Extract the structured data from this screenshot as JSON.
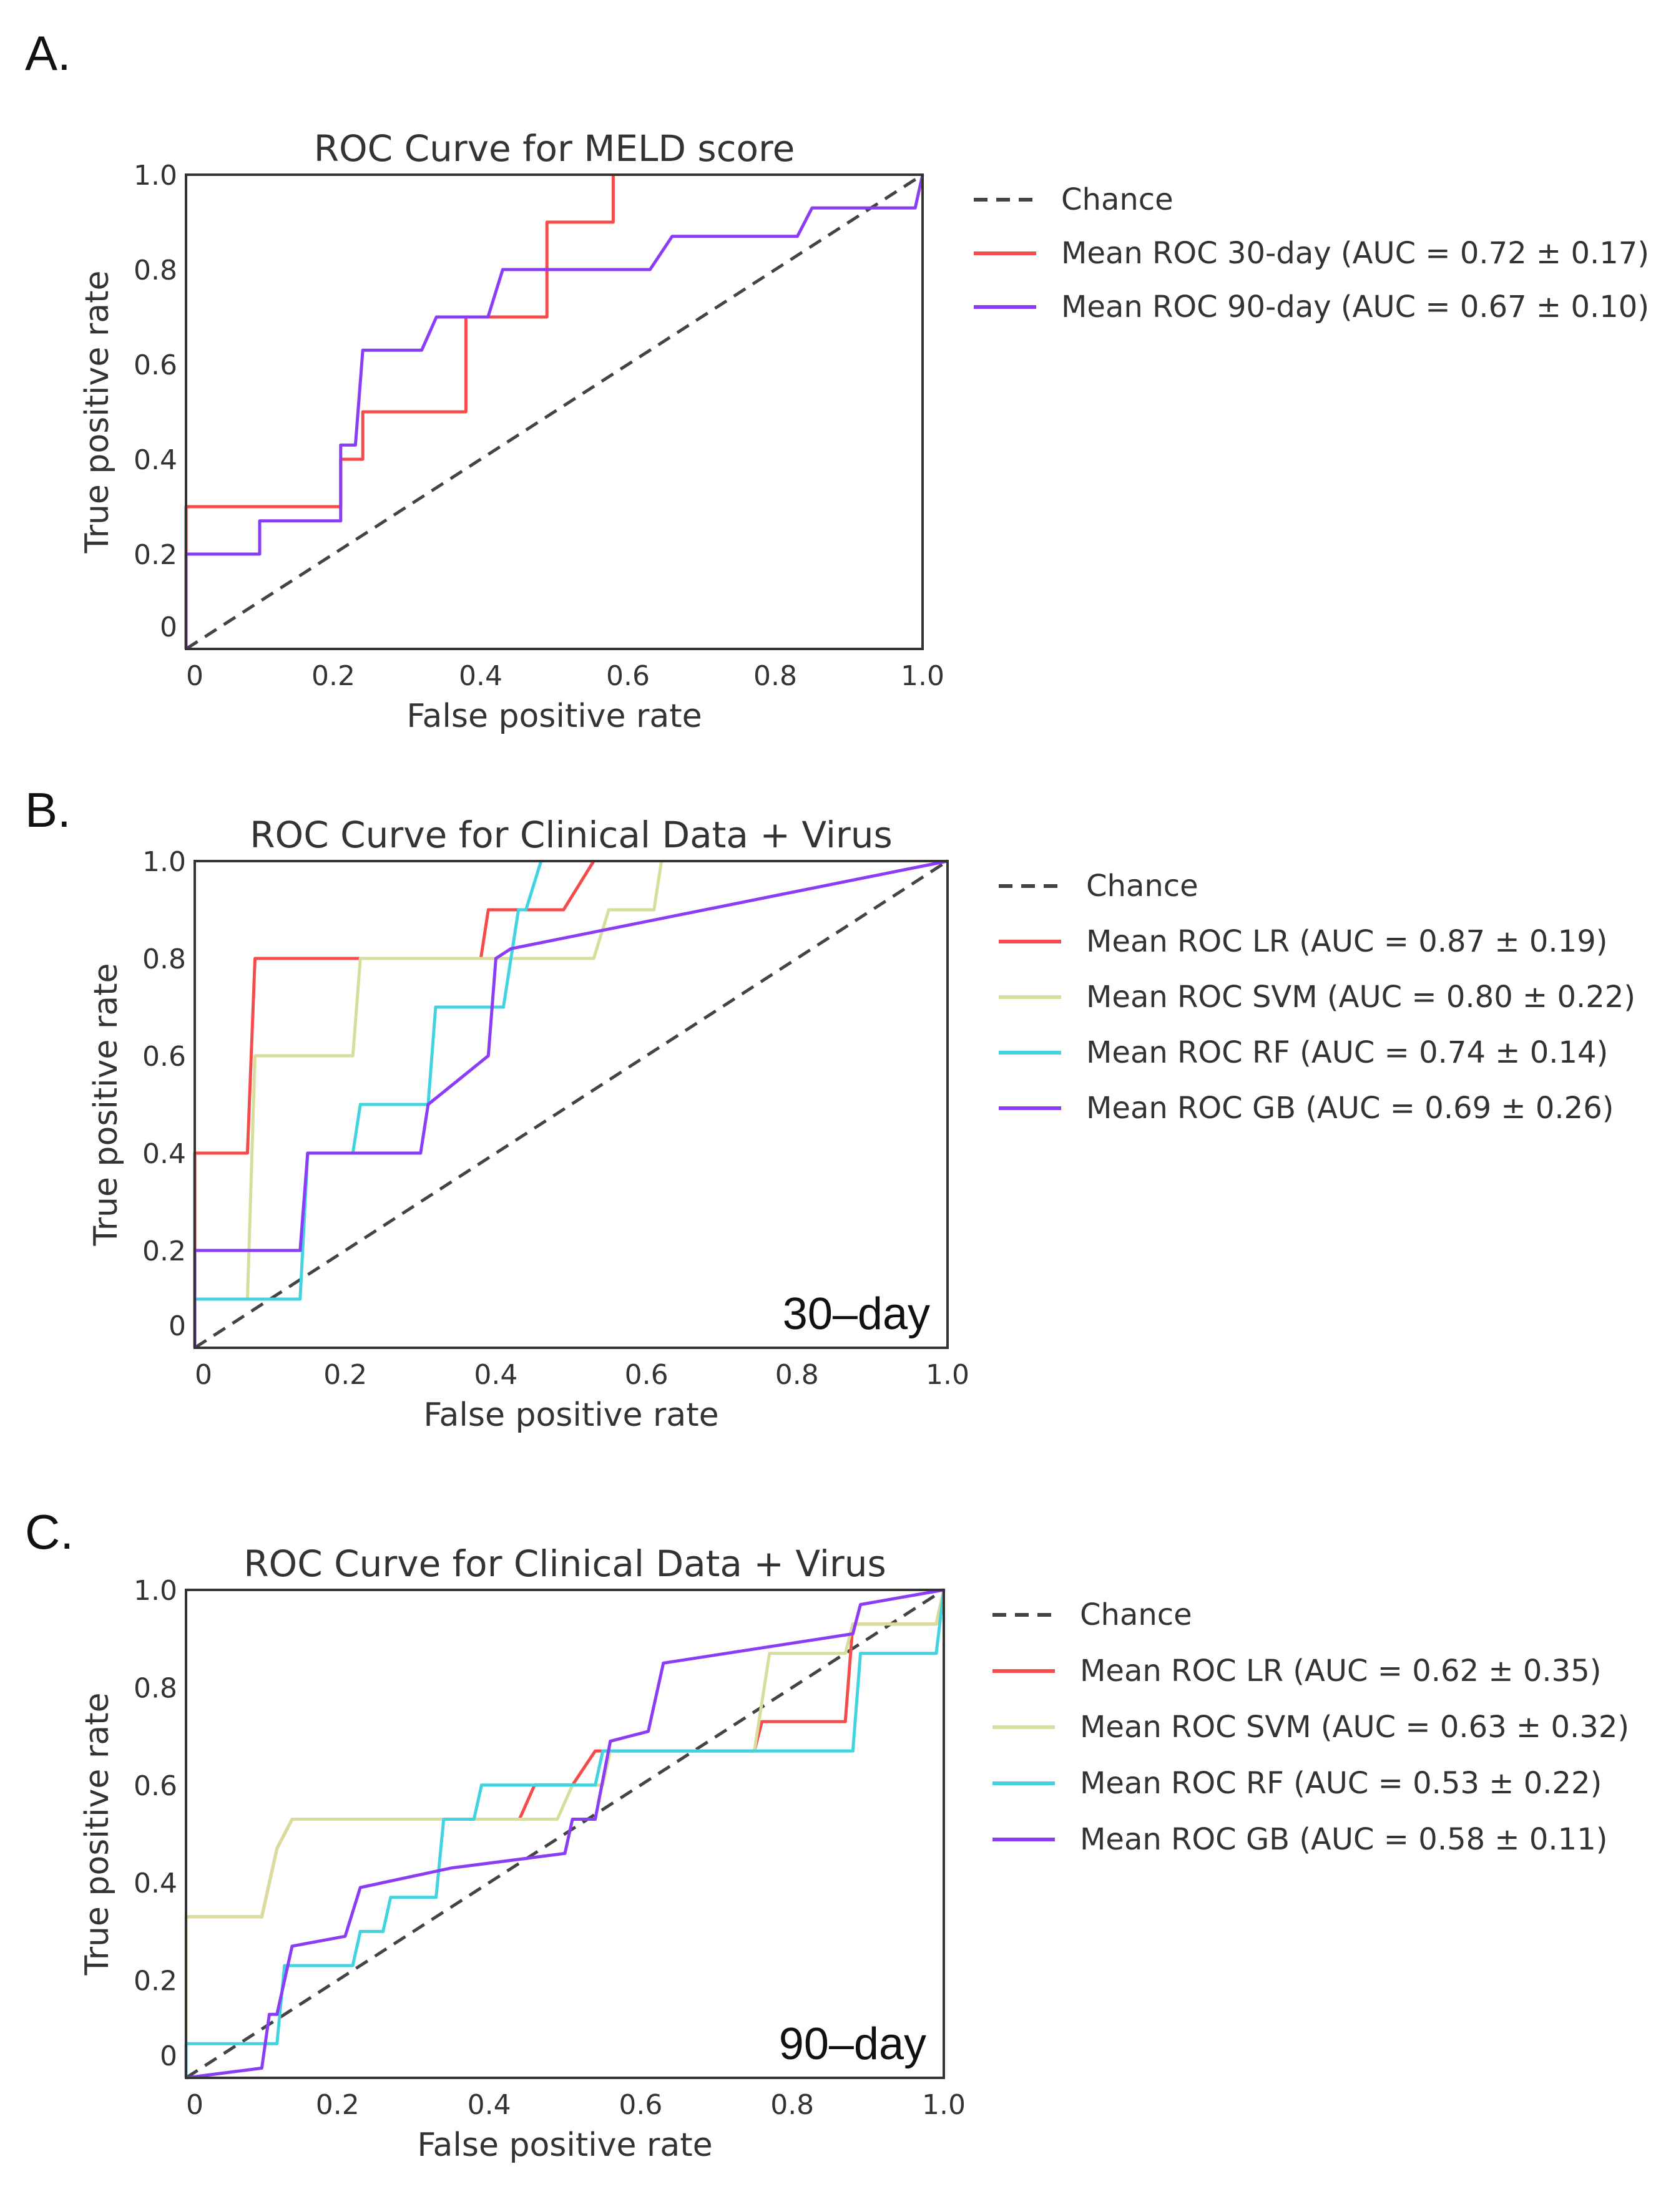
{
  "chart_data": [
    {
      "type": "line",
      "panel": "A.",
      "title": "ROC Curve for MELD score",
      "xlabel": "False positive rate",
      "ylabel": "True positive rate",
      "xlim": [
        0,
        1
      ],
      "ylim": [
        0,
        1
      ],
      "xticks": [
        "0",
        "0.2",
        "0.4",
        "0.6",
        "0.8",
        "1.0"
      ],
      "yticks": [
        "0",
        "0.2",
        "0.4",
        "0.6",
        "0.8",
        "1.0"
      ],
      "legend_position": "right",
      "annotation": "",
      "series": [
        {
          "name": "Chance",
          "color": "#444444",
          "dashed": true,
          "points": [
            [
              0,
              0
            ],
            [
              1,
              1
            ]
          ]
        },
        {
          "name": "Mean ROC 30-day  (AUC = 0.72 ± 0.17)",
          "color": "#f44b4b",
          "dashed": false,
          "points": [
            [
              0,
              0
            ],
            [
              0,
              0.3
            ],
            [
              0.21,
              0.3
            ],
            [
              0.21,
              0.4
            ],
            [
              0.24,
              0.4
            ],
            [
              0.24,
              0.5
            ],
            [
              0.38,
              0.5
            ],
            [
              0.38,
              0.7
            ],
            [
              0.49,
              0.7
            ],
            [
              0.49,
              0.9
            ],
            [
              0.58,
              0.9
            ],
            [
              0.58,
              1.0
            ]
          ]
        },
        {
          "name": "Mean ROC 90-day (AUC = 0.67 ± 0.10)",
          "color": "#8b3cf5",
          "dashed": false,
          "points": [
            [
              0,
              0
            ],
            [
              0,
              0.2
            ],
            [
              0.1,
              0.2
            ],
            [
              0.1,
              0.27
            ],
            [
              0.21,
              0.27
            ],
            [
              0.21,
              0.43
            ],
            [
              0.23,
              0.43
            ],
            [
              0.24,
              0.63
            ],
            [
              0.32,
              0.63
            ],
            [
              0.34,
              0.7
            ],
            [
              0.41,
              0.7
            ],
            [
              0.43,
              0.8
            ],
            [
              0.63,
              0.8
            ],
            [
              0.66,
              0.87
            ],
            [
              0.83,
              0.87
            ],
            [
              0.85,
              0.93
            ],
            [
              0.99,
              0.93
            ],
            [
              1.0,
              1.0
            ]
          ]
        }
      ]
    },
    {
      "type": "line",
      "panel": "B.",
      "title": "ROC Curve for Clinical Data + Virus",
      "xlabel": "False positive rate",
      "ylabel": "True positive rate",
      "xlim": [
        0,
        1
      ],
      "ylim": [
        0,
        1
      ],
      "xticks": [
        "0",
        "0.2",
        "0.4",
        "0.6",
        "0.8",
        "1.0"
      ],
      "yticks": [
        "0",
        "0.2",
        "0.4",
        "0.6",
        "0.8",
        "1.0"
      ],
      "legend_position": "right",
      "annotation": "30–day",
      "series": [
        {
          "name": "Chance",
          "color": "#444444",
          "dashed": true,
          "points": [
            [
              0,
              0
            ],
            [
              1,
              1
            ]
          ]
        },
        {
          "name": "Mean ROC LR (AUC = 0.87 ± 0.19)",
          "color": "#f44b4b",
          "dashed": false,
          "points": [
            [
              0,
              0
            ],
            [
              0,
              0.4
            ],
            [
              0.07,
              0.4
            ],
            [
              0.08,
              0.8
            ],
            [
              0.38,
              0.8
            ],
            [
              0.39,
              0.9
            ],
            [
              0.49,
              0.9
            ],
            [
              0.53,
              1.0
            ]
          ]
        },
        {
          "name": "Mean ROC SVM (AUC = 0.80 ± 0.22)",
          "color": "#d9dd9c",
          "dashed": false,
          "points": [
            [
              0,
              0
            ],
            [
              0,
              0.1
            ],
            [
              0.07,
              0.1
            ],
            [
              0.08,
              0.6
            ],
            [
              0.21,
              0.6
            ],
            [
              0.22,
              0.8
            ],
            [
              0.53,
              0.8
            ],
            [
              0.55,
              0.9
            ],
            [
              0.61,
              0.9
            ],
            [
              0.62,
              1.0
            ]
          ]
        },
        {
          "name": "Mean ROC RF (AUC = 0.74 ± 0.14)",
          "color": "#41d3e0",
          "dashed": false,
          "points": [
            [
              0,
              0
            ],
            [
              0,
              0.1
            ],
            [
              0.14,
              0.1
            ],
            [
              0.15,
              0.4
            ],
            [
              0.21,
              0.4
            ],
            [
              0.22,
              0.5
            ],
            [
              0.31,
              0.5
            ],
            [
              0.32,
              0.7
            ],
            [
              0.41,
              0.7
            ],
            [
              0.43,
              0.9
            ],
            [
              0.44,
              0.9
            ],
            [
              0.46,
              1.0
            ]
          ]
        },
        {
          "name": "Mean ROC GB (AUC = 0.69 ± 0.26)",
          "color": "#8b3cf5",
          "dashed": false,
          "points": [
            [
              0,
              0
            ],
            [
              0,
              0.2
            ],
            [
              0.14,
              0.2
            ],
            [
              0.15,
              0.4
            ],
            [
              0.3,
              0.4
            ],
            [
              0.31,
              0.5
            ],
            [
              0.39,
              0.6
            ],
            [
              0.4,
              0.8
            ],
            [
              0.42,
              0.82
            ],
            [
              1.0,
              1.0
            ]
          ]
        }
      ]
    },
    {
      "type": "line",
      "panel": "C.",
      "title": "ROC Curve for Clinical Data + Virus",
      "xlabel": "False positive rate",
      "ylabel": "True positive rate",
      "xlim": [
        0,
        1
      ],
      "ylim": [
        0,
        1
      ],
      "xticks": [
        "0",
        "0.2",
        "0.4",
        "0.6",
        "0.8",
        "1.0"
      ],
      "yticks": [
        "0",
        "0.2",
        "0.4",
        "0.6",
        "0.8",
        "1.0"
      ],
      "legend_position": "right",
      "annotation": "90–day",
      "series": [
        {
          "name": "Chance",
          "color": "#444444",
          "dashed": true,
          "points": [
            [
              0,
              0
            ],
            [
              1,
              1
            ]
          ]
        },
        {
          "name": "Mean ROC LR (AUC = 0.62 ± 0.35)",
          "color": "#f44b4b",
          "dashed": false,
          "points": [
            [
              0,
              0
            ],
            [
              0,
              0.33
            ],
            [
              0.1,
              0.33
            ],
            [
              0.12,
              0.47
            ],
            [
              0.14,
              0.53
            ],
            [
              0.44,
              0.53
            ],
            [
              0.46,
              0.6
            ],
            [
              0.51,
              0.6
            ],
            [
              0.54,
              0.67
            ],
            [
              0.75,
              0.67
            ],
            [
              0.76,
              0.73
            ],
            [
              0.87,
              0.73
            ],
            [
              0.88,
              0.93
            ],
            [
              0.99,
              0.93
            ],
            [
              1.0,
              1.0
            ]
          ]
        },
        {
          "name": "Mean ROC SVM (AUC = 0.63 ± 0.32)",
          "color": "#d9dd9c",
          "dashed": false,
          "points": [
            [
              0,
              0
            ],
            [
              0,
              0.33
            ],
            [
              0.1,
              0.33
            ],
            [
              0.12,
              0.47
            ],
            [
              0.14,
              0.53
            ],
            [
              0.49,
              0.53
            ],
            [
              0.51,
              0.6
            ],
            [
              0.55,
              0.6
            ],
            [
              0.56,
              0.67
            ],
            [
              0.75,
              0.67
            ],
            [
              0.77,
              0.87
            ],
            [
              0.87,
              0.87
            ],
            [
              0.88,
              0.93
            ],
            [
              0.99,
              0.93
            ],
            [
              1.0,
              1.0
            ]
          ]
        },
        {
          "name": "Mean ROC RF (AUC = 0.53 ± 0.22)",
          "color": "#41d3e0",
          "dashed": false,
          "points": [
            [
              0,
              0
            ],
            [
              0,
              0.07
            ],
            [
              0.12,
              0.07
            ],
            [
              0.13,
              0.23
            ],
            [
              0.22,
              0.23
            ],
            [
              0.23,
              0.3
            ],
            [
              0.26,
              0.3
            ],
            [
              0.27,
              0.37
            ],
            [
              0.33,
              0.37
            ],
            [
              0.34,
              0.53
            ],
            [
              0.38,
              0.53
            ],
            [
              0.39,
              0.6
            ],
            [
              0.54,
              0.6
            ],
            [
              0.55,
              0.67
            ],
            [
              0.88,
              0.67
            ],
            [
              0.89,
              0.87
            ],
            [
              0.99,
              0.87
            ],
            [
              1.0,
              1.0
            ]
          ]
        },
        {
          "name": "Mean ROC GB (AUC = 0.58 ± 0.11)",
          "color": "#8b3cf5",
          "dashed": false,
          "points": [
            [
              0,
              0
            ],
            [
              0.1,
              0.02
            ],
            [
              0.11,
              0.13
            ],
            [
              0.12,
              0.13
            ],
            [
              0.14,
              0.27
            ],
            [
              0.21,
              0.29
            ],
            [
              0.23,
              0.39
            ],
            [
              0.35,
              0.43
            ],
            [
              0.5,
              0.46
            ],
            [
              0.51,
              0.53
            ],
            [
              0.54,
              0.53
            ],
            [
              0.56,
              0.69
            ],
            [
              0.61,
              0.71
            ],
            [
              0.63,
              0.85
            ],
            [
              0.88,
              0.91
            ],
            [
              0.89,
              0.97
            ],
            [
              1.0,
              1.0
            ]
          ]
        }
      ]
    }
  ]
}
